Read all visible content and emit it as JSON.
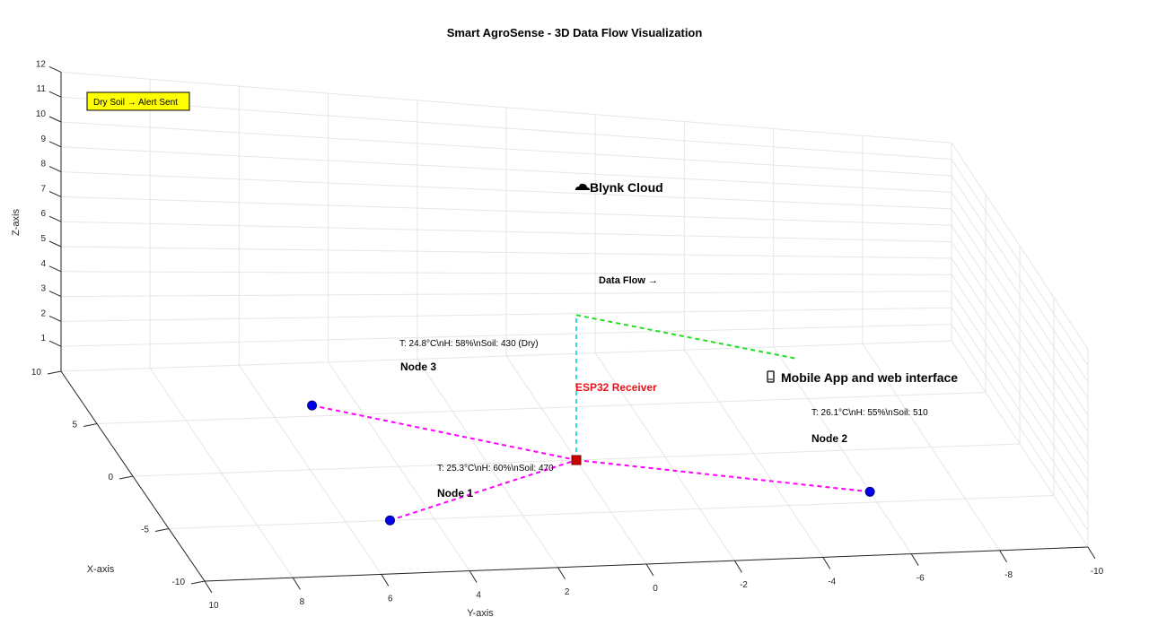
{
  "chart_data": {
    "type": "scatter",
    "title": "Smart AgroSense - 3D Data Flow Visualization",
    "xlabel": "X-axis",
    "ylabel": "Y-axis",
    "zlabel": "Z-axis",
    "xlim": [
      -10,
      10
    ],
    "ylim": [
      -10,
      10
    ],
    "zlim": [
      0,
      12
    ],
    "x_ticks": [
      "-10",
      "-5",
      "0",
      "5",
      "10"
    ],
    "y_ticks": [
      "10",
      "8",
      "6",
      "4",
      "2",
      "0",
      "-2",
      "-4",
      "-6",
      "-8",
      "-10"
    ],
    "z_ticks": [
      "1",
      "2",
      "3",
      "4",
      "5",
      "6",
      "7",
      "8",
      "9",
      "10",
      "11",
      "12"
    ],
    "grid": true,
    "nodes": [
      {
        "name": "Node 1",
        "x": -5,
        "y": 5,
        "z": 0,
        "color": "#0000ee",
        "reading": "T: 25.3°C\\nH: 60%\\nSoil: 470"
      },
      {
        "name": "Node 2",
        "x": -4,
        "y": -6,
        "z": 0,
        "color": "#0000ee",
        "reading": "T: 26.1°C\\nH: 55%\\nSoil: 510"
      },
      {
        "name": "Node 3",
        "x": 6,
        "y": 5,
        "z": 0,
        "color": "#0000ee",
        "reading": "T: 24.8°C\\nH: 58%\\nSoil: 430 (Dry)"
      }
    ],
    "receiver": {
      "name": "ESP32 Receiver",
      "x": 0,
      "y": 0,
      "z": 0,
      "color": "#cc0000"
    },
    "cloud": {
      "name": "Blynk Cloud",
      "icon": "cloud-icon",
      "x": 0,
      "y": 0,
      "z": 7
    },
    "app": {
      "name": "Mobile App and web interface",
      "icon": "mobile-phone-icon",
      "x": 0,
      "y": -5,
      "z": 5
    },
    "links": [
      {
        "from": "Node 1",
        "to": "ESP32 Receiver",
        "color": "#ff00ff",
        "style": "dashed"
      },
      {
        "from": "Node 2",
        "to": "ESP32 Receiver",
        "color": "#ff00ff",
        "style": "dashed"
      },
      {
        "from": "Node 3",
        "to": "ESP32 Receiver",
        "color": "#ff00ff",
        "style": "dashed"
      },
      {
        "from": "ESP32 Receiver",
        "to": "Blynk Cloud",
        "color": "#33dddd",
        "style": "dashed"
      },
      {
        "from": "Blynk Cloud",
        "to": "Mobile App and web interface",
        "color": "#22dd22",
        "style": "dashed"
      }
    ],
    "flow_label": "Data Flow →",
    "alert": {
      "text": "Dry Soil → Alert Sent",
      "background": "#ffff00"
    }
  }
}
